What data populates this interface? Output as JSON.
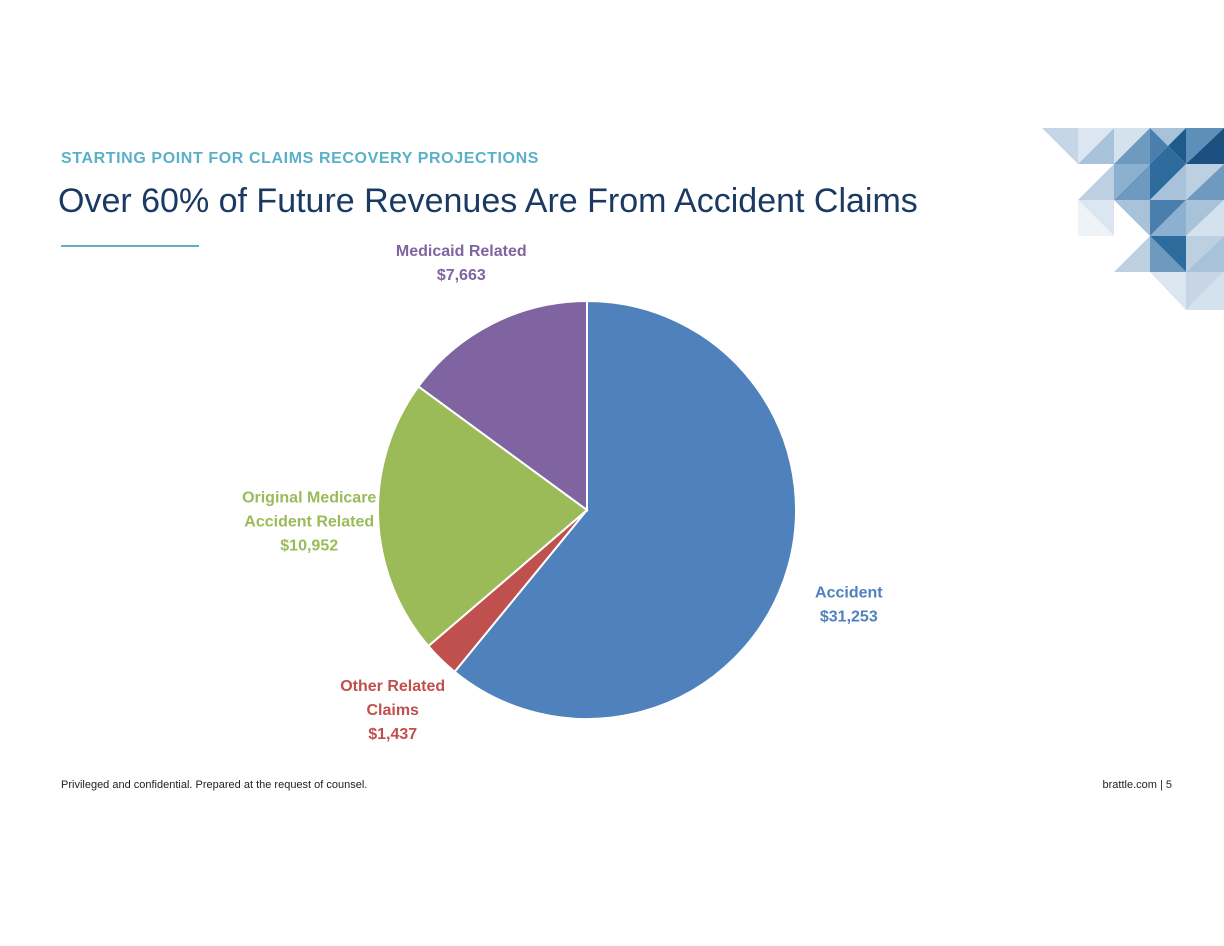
{
  "header": {
    "kicker": "STARTING POINT FOR CLAIMS RECOVERY PROJECTIONS",
    "title": "Over 60% of Future Revenues Are From Accident Claims"
  },
  "footer": {
    "confidential_note": "Privileged and confidential. Prepared at the request of counsel.",
    "site_and_page": "brattle.com | 5"
  },
  "chart_data": {
    "type": "pie",
    "title": "",
    "legend": "none",
    "slices": [
      {
        "label_lines": [
          "Accident"
        ],
        "value": 31253,
        "value_label": "$31,253",
        "color": "#4f81bd"
      },
      {
        "label_lines": [
          "Other Related",
          "Claims"
        ],
        "value": 1437,
        "value_label": "$1,437",
        "color": "#c0504d"
      },
      {
        "label_lines": [
          "Original Medicare",
          "Accident Related"
        ],
        "value": 10952,
        "value_label": "$10,952",
        "color": "#9bbb59"
      },
      {
        "label_lines": [
          "Medicaid Related"
        ],
        "value": 7663,
        "value_label": "$7,663",
        "color": "#8064a2"
      }
    ]
  },
  "colors": {
    "kicker": "#5ab0c8",
    "title": "#1b3a63",
    "slice_border": "#ffffff"
  }
}
